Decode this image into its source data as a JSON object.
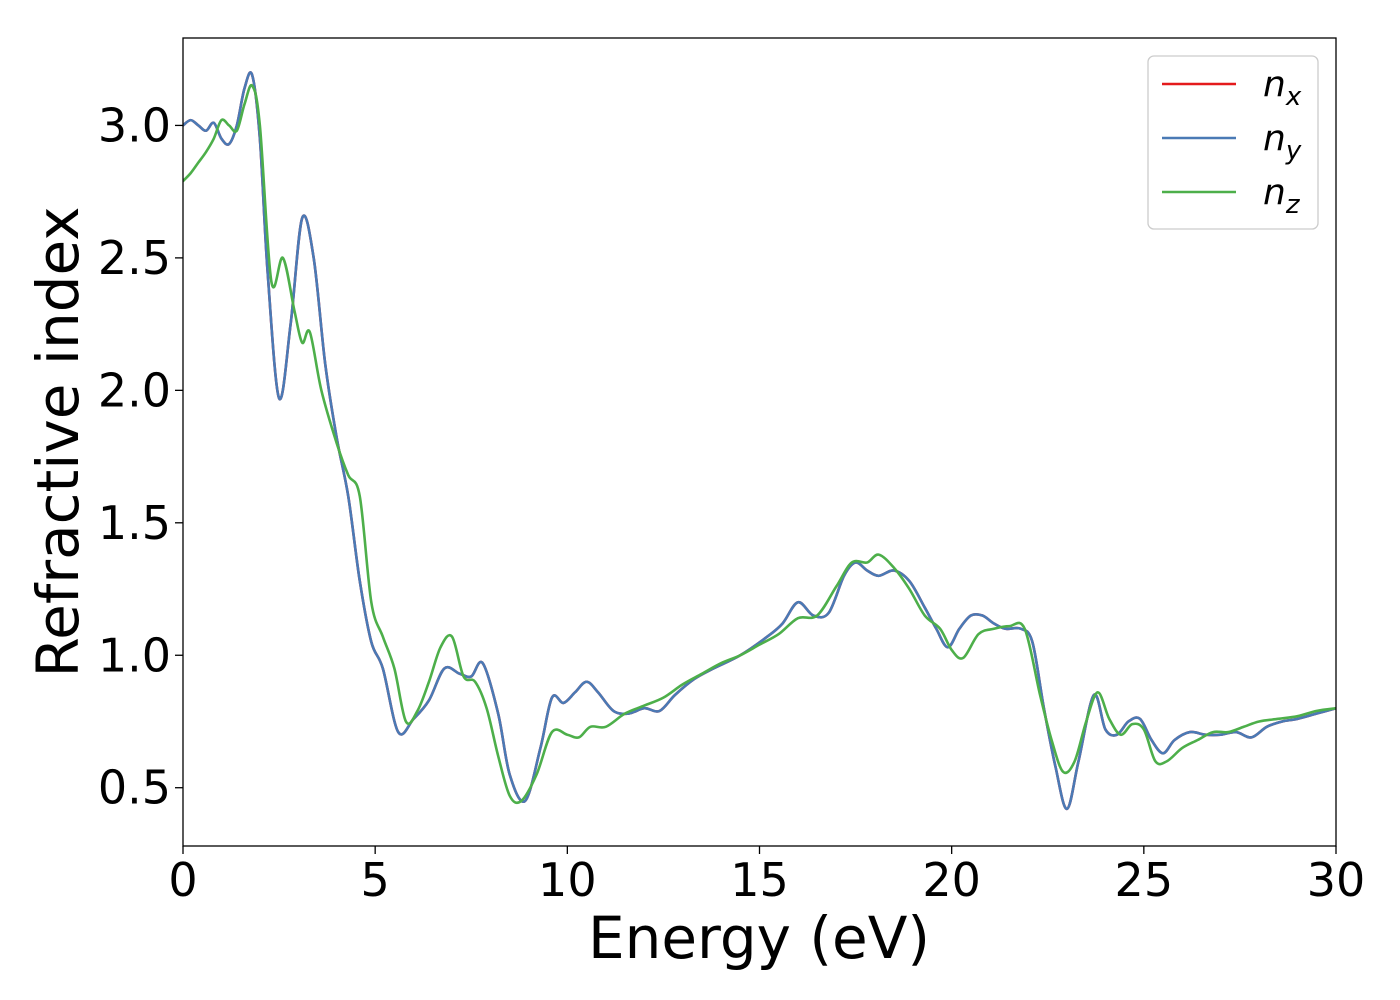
{
  "chart_data": {
    "type": "line",
    "xlabel": "Energy (eV)",
    "ylabel": "Refractive index",
    "xlim": [
      0,
      30
    ],
    "ylim": [
      0.28,
      3.33
    ],
    "xticks": [
      0,
      5,
      10,
      15,
      20,
      25,
      30
    ],
    "xtick_labels": [
      "0",
      "5",
      "10",
      "15",
      "20",
      "25",
      "30"
    ],
    "yticks": [
      0.5,
      1.0,
      1.5,
      2.0,
      2.5,
      3.0
    ],
    "ytick_labels": [
      "0.5",
      "1.0",
      "1.5",
      "2.0",
      "2.5",
      "3.0"
    ],
    "grid": false,
    "legend_position": "top-right",
    "series": [
      {
        "name": "n_x",
        "label_base": "n",
        "label_sub": "x",
        "color": "#e41a1c",
        "x": [
          0,
          0.2,
          0.4,
          0.6,
          0.8,
          1.0,
          1.2,
          1.4,
          1.6,
          1.8,
          2.0,
          2.2,
          2.5,
          2.8,
          3.1,
          3.4,
          3.7,
          4.0,
          4.3,
          4.6,
          4.9,
          5.2,
          5.6,
          6.0,
          6.4,
          6.8,
          7.2,
          7.5,
          7.8,
          8.2,
          8.5,
          8.9,
          9.3,
          9.6,
          9.9,
          10.2,
          10.5,
          10.8,
          11.2,
          11.6,
          12.0,
          12.4,
          12.8,
          13.3,
          13.8,
          14.5,
          15.2,
          15.6,
          16.0,
          16.4,
          16.8,
          17.2,
          17.5,
          17.8,
          18.1,
          18.5,
          18.9,
          19.3,
          19.6,
          19.9,
          20.2,
          20.5,
          20.8,
          21.1,
          21.4,
          21.8,
          22.1,
          22.4,
          22.7,
          23.0,
          23.3,
          23.7,
          24.0,
          24.3,
          24.6,
          24.9,
          25.2,
          25.5,
          25.8,
          26.2,
          26.6,
          27.0,
          27.4,
          27.8,
          28.2,
          28.6,
          29.0,
          29.5,
          30.0
        ],
        "y": [
          3.0,
          3.02,
          3.0,
          2.98,
          3.01,
          2.95,
          2.93,
          3.0,
          3.14,
          3.19,
          2.95,
          2.45,
          1.97,
          2.25,
          2.65,
          2.5,
          2.1,
          1.82,
          1.6,
          1.28,
          1.05,
          0.95,
          0.71,
          0.76,
          0.83,
          0.95,
          0.93,
          0.92,
          0.97,
          0.78,
          0.55,
          0.45,
          0.65,
          0.84,
          0.82,
          0.86,
          0.9,
          0.86,
          0.79,
          0.78,
          0.8,
          0.79,
          0.85,
          0.91,
          0.95,
          1.0,
          1.07,
          1.12,
          1.2,
          1.15,
          1.16,
          1.3,
          1.35,
          1.32,
          1.3,
          1.32,
          1.28,
          1.18,
          1.1,
          1.03,
          1.1,
          1.15,
          1.15,
          1.12,
          1.1,
          1.1,
          1.05,
          0.8,
          0.58,
          0.42,
          0.6,
          0.85,
          0.72,
          0.7,
          0.75,
          0.76,
          0.68,
          0.63,
          0.68,
          0.71,
          0.7,
          0.7,
          0.71,
          0.69,
          0.73,
          0.75,
          0.76,
          0.78,
          0.8
        ]
      },
      {
        "name": "n_y",
        "label_base": "n",
        "label_sub": "y",
        "color": "#4a7ab5",
        "x": [
          0,
          0.2,
          0.4,
          0.6,
          0.8,
          1.0,
          1.2,
          1.4,
          1.6,
          1.8,
          2.0,
          2.2,
          2.5,
          2.8,
          3.1,
          3.4,
          3.7,
          4.0,
          4.3,
          4.6,
          4.9,
          5.2,
          5.6,
          6.0,
          6.4,
          6.8,
          7.2,
          7.5,
          7.8,
          8.2,
          8.5,
          8.9,
          9.3,
          9.6,
          9.9,
          10.2,
          10.5,
          10.8,
          11.2,
          11.6,
          12.0,
          12.4,
          12.8,
          13.3,
          13.8,
          14.5,
          15.2,
          15.6,
          16.0,
          16.4,
          16.8,
          17.2,
          17.5,
          17.8,
          18.1,
          18.5,
          18.9,
          19.3,
          19.6,
          19.9,
          20.2,
          20.5,
          20.8,
          21.1,
          21.4,
          21.8,
          22.1,
          22.4,
          22.7,
          23.0,
          23.3,
          23.7,
          24.0,
          24.3,
          24.6,
          24.9,
          25.2,
          25.5,
          25.8,
          26.2,
          26.6,
          27.0,
          27.4,
          27.8,
          28.2,
          28.6,
          29.0,
          29.5,
          30.0
        ],
        "y": [
          3.0,
          3.02,
          3.0,
          2.98,
          3.01,
          2.95,
          2.93,
          3.0,
          3.14,
          3.19,
          2.95,
          2.45,
          1.97,
          2.25,
          2.65,
          2.5,
          2.1,
          1.82,
          1.6,
          1.28,
          1.05,
          0.95,
          0.71,
          0.76,
          0.83,
          0.95,
          0.93,
          0.92,
          0.97,
          0.78,
          0.55,
          0.45,
          0.65,
          0.84,
          0.82,
          0.86,
          0.9,
          0.86,
          0.79,
          0.78,
          0.8,
          0.79,
          0.85,
          0.91,
          0.95,
          1.0,
          1.07,
          1.12,
          1.2,
          1.15,
          1.16,
          1.3,
          1.35,
          1.32,
          1.3,
          1.32,
          1.28,
          1.18,
          1.1,
          1.03,
          1.1,
          1.15,
          1.15,
          1.12,
          1.1,
          1.1,
          1.05,
          0.8,
          0.58,
          0.42,
          0.6,
          0.85,
          0.72,
          0.7,
          0.75,
          0.76,
          0.68,
          0.63,
          0.68,
          0.71,
          0.7,
          0.7,
          0.71,
          0.69,
          0.73,
          0.75,
          0.76,
          0.78,
          0.8
        ]
      },
      {
        "name": "n_z",
        "label_base": "n",
        "label_sub": "z",
        "color": "#4daf4a",
        "x": [
          0,
          0.2,
          0.4,
          0.6,
          0.8,
          1.0,
          1.2,
          1.4,
          1.6,
          1.8,
          2.0,
          2.3,
          2.6,
          2.9,
          3.1,
          3.3,
          3.6,
          4.0,
          4.3,
          4.6,
          4.9,
          5.2,
          5.5,
          5.8,
          6.1,
          6.4,
          6.7,
          7.0,
          7.3,
          7.6,
          7.9,
          8.2,
          8.5,
          8.8,
          9.2,
          9.6,
          10.0,
          10.3,
          10.6,
          11.0,
          11.5,
          12.0,
          12.5,
          13.0,
          13.5,
          14.0,
          14.5,
          15.0,
          15.5,
          16.0,
          16.5,
          17.0,
          17.4,
          17.8,
          18.1,
          18.5,
          18.9,
          19.3,
          19.7,
          20.0,
          20.3,
          20.7,
          21.1,
          21.5,
          21.9,
          22.3,
          22.6,
          22.9,
          23.2,
          23.5,
          23.8,
          24.1,
          24.4,
          24.7,
          25.0,
          25.3,
          25.6,
          26.0,
          26.4,
          26.8,
          27.2,
          27.6,
          28.0,
          28.5,
          29.0,
          29.5,
          30.0
        ],
        "y": [
          2.79,
          2.82,
          2.86,
          2.9,
          2.95,
          3.02,
          3.0,
          2.98,
          3.08,
          3.15,
          3.0,
          2.41,
          2.5,
          2.3,
          2.18,
          2.22,
          2.0,
          1.8,
          1.68,
          1.6,
          1.2,
          1.07,
          0.95,
          0.75,
          0.79,
          0.9,
          1.03,
          1.07,
          0.92,
          0.9,
          0.8,
          0.62,
          0.47,
          0.45,
          0.55,
          0.71,
          0.7,
          0.69,
          0.73,
          0.73,
          0.78,
          0.81,
          0.84,
          0.89,
          0.93,
          0.97,
          1.0,
          1.04,
          1.08,
          1.14,
          1.15,
          1.26,
          1.35,
          1.35,
          1.38,
          1.33,
          1.25,
          1.15,
          1.1,
          1.02,
          0.99,
          1.08,
          1.1,
          1.11,
          1.1,
          0.85,
          0.68,
          0.56,
          0.6,
          0.75,
          0.86,
          0.76,
          0.7,
          0.74,
          0.72,
          0.6,
          0.6,
          0.65,
          0.68,
          0.71,
          0.71,
          0.73,
          0.75,
          0.76,
          0.77,
          0.79,
          0.8
        ]
      }
    ]
  }
}
